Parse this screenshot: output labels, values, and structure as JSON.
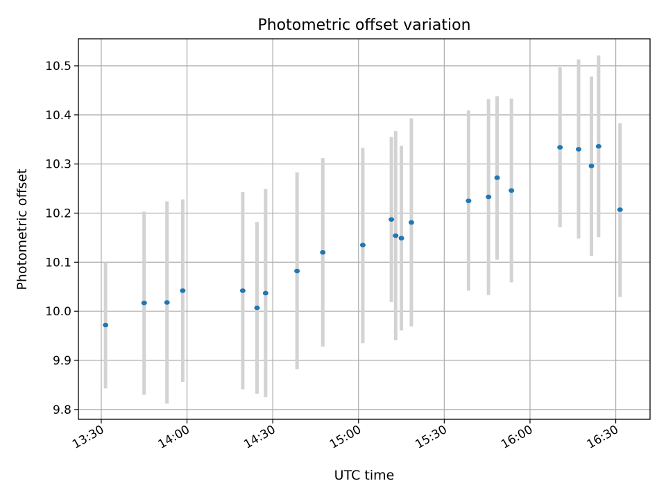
{
  "chart_data": {
    "type": "scatter",
    "title": "Photometric offset variation",
    "xlabel": "UTC time",
    "ylabel": "Photometric offset",
    "x_ticks": [
      "13:30",
      "14:00",
      "14:30",
      "15:00",
      "15:30",
      "16:00",
      "16:30"
    ],
    "y_ticks": [
      9.8,
      9.9,
      10.0,
      10.1,
      10.2,
      10.3,
      10.4,
      10.5
    ],
    "xlim": [
      "13:22",
      "16:42"
    ],
    "ylim": [
      9.78,
      10.555
    ],
    "grid": true,
    "point_color": "#1f77b4",
    "errorbar_color": "#d3d3d3",
    "series": [
      {
        "points": [
          {
            "x": "13:31:30",
            "y": 9.972,
            "low": 9.843,
            "high": 10.1
          },
          {
            "x": "13:45:00",
            "y": 10.017,
            "low": 9.83,
            "high": 10.203
          },
          {
            "x": "13:53:00",
            "y": 10.018,
            "low": 9.812,
            "high": 10.224
          },
          {
            "x": "13:58:30",
            "y": 10.042,
            "low": 9.856,
            "high": 10.228
          },
          {
            "x": "14:19:30",
            "y": 10.042,
            "low": 9.841,
            "high": 10.243
          },
          {
            "x": "14:24:30",
            "y": 10.007,
            "low": 9.832,
            "high": 10.182
          },
          {
            "x": "14:27:30",
            "y": 10.037,
            "low": 9.825,
            "high": 10.249
          },
          {
            "x": "14:38:30",
            "y": 10.082,
            "low": 9.882,
            "high": 10.283
          },
          {
            "x": "14:47:30",
            "y": 10.12,
            "low": 9.928,
            "high": 10.312
          },
          {
            "x": "15:01:30",
            "y": 10.135,
            "low": 9.935,
            "high": 10.333
          },
          {
            "x": "15:11:30",
            "y": 10.187,
            "low": 10.019,
            "high": 10.355
          },
          {
            "x": "15:13:00",
            "y": 10.154,
            "low": 9.941,
            "high": 10.367
          },
          {
            "x": "15:15:00",
            "y": 10.149,
            "low": 9.961,
            "high": 10.337
          },
          {
            "x": "15:18:30",
            "y": 10.181,
            "low": 9.969,
            "high": 10.393
          },
          {
            "x": "15:38:30",
            "y": 10.225,
            "low": 10.042,
            "high": 10.409
          },
          {
            "x": "15:45:30",
            "y": 10.233,
            "low": 10.033,
            "high": 10.432
          },
          {
            "x": "15:48:30",
            "y": 10.272,
            "low": 10.105,
            "high": 10.438
          },
          {
            "x": "15:53:30",
            "y": 10.246,
            "low": 10.059,
            "high": 10.433
          },
          {
            "x": "16:10:30",
            "y": 10.334,
            "low": 10.171,
            "high": 10.497
          },
          {
            "x": "16:17:00",
            "y": 10.33,
            "low": 10.148,
            "high": 10.513
          },
          {
            "x": "16:21:30",
            "y": 10.296,
            "low": 10.113,
            "high": 10.478
          },
          {
            "x": "16:24:00",
            "y": 10.336,
            "low": 10.151,
            "high": 10.521
          },
          {
            "x": "16:31:30",
            "y": 10.207,
            "low": 10.029,
            "high": 10.383
          }
        ]
      }
    ]
  }
}
